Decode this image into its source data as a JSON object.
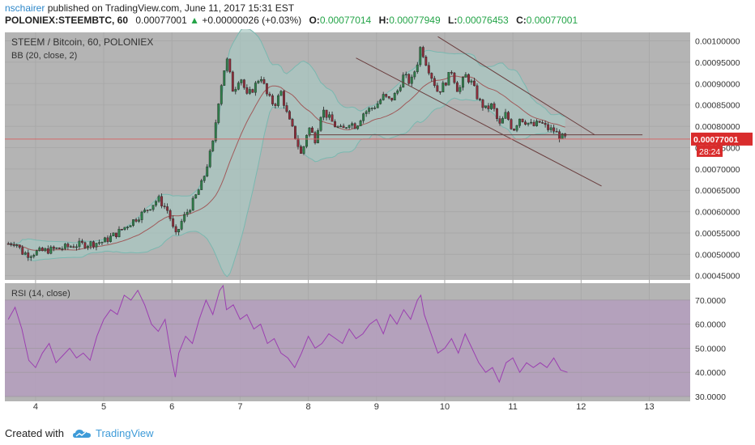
{
  "header": {
    "author": "nschairer",
    "published": " published on TradingView.com, June 11, 2017 15:31 EST",
    "symbol": "POLONIEX:STEEMBTC, 60",
    "last": "0.00077001",
    "arrow": "▲",
    "change": "+0.00000026 (+0.03%)",
    "o_label": "O:",
    "o_value": "0.00077014",
    "h_label": "H:",
    "h_value": "0.00077949",
    "l_label": "L:",
    "l_value": "0.00076453",
    "c_label": "C:",
    "c_value": "0.00077001"
  },
  "footer": {
    "created_with": "Created with",
    "brand": "TradingView"
  },
  "colors": {
    "background": "#b4b4b4",
    "up_candle": "#2f7f4a",
    "down_candle": "#8e2d3a",
    "bb_band": "#7ab8b0",
    "bb_fill": "#a8c8c2",
    "bb_basis": "#a05a5a",
    "rsi_line": "#9b3fb0",
    "rsi_band_fill": "#b49dbd",
    "price_line": "#d36a6a",
    "price_label_bg": "#d92c2c",
    "trend_line": "#6a3f3f"
  },
  "chart_data": [
    {
      "type": "candlestick",
      "title": "STEEM / Bitcoin, 60, POLONIEX",
      "indicator_label": "BB (20, close, 2)",
      "x_ticks": [
        "4",
        "5",
        "6",
        "7",
        "8",
        "9",
        "10",
        "11",
        "12",
        "13"
      ],
      "y_ticks": [
        "0.00100000",
        "0.00095000",
        "0.00090000",
        "0.00085000",
        "0.00080000",
        "0.00075000",
        "0.00070000",
        "0.00065000",
        "0.00060000",
        "0.00055000",
        "0.00050000",
        "0.00045000"
      ],
      "ylim": [
        0.00044,
        0.00102
      ],
      "last_price_label": "0.00077001",
      "countdown_label": "28:24",
      "last_price": 0.00077001,
      "close_path": [
        [
          3.6,
          0.000525
        ],
        [
          3.7,
          0.00053
        ],
        [
          3.8,
          0.000505
        ],
        [
          3.9,
          0.0005
        ],
        [
          4.0,
          0.000505
        ],
        [
          4.2,
          0.00051
        ],
        [
          4.4,
          0.000515
        ],
        [
          4.6,
          0.000522
        ],
        [
          4.8,
          0.000525
        ],
        [
          5.0,
          0.00053
        ],
        [
          5.2,
          0.00055
        ],
        [
          5.4,
          0.000575
        ],
        [
          5.6,
          0.0006
        ],
        [
          5.8,
          0.00063
        ],
        [
          5.95,
          0.0006
        ],
        [
          6.05,
          0.00054
        ],
        [
          6.15,
          0.00058
        ],
        [
          6.3,
          0.00062
        ],
        [
          6.45,
          0.00067
        ],
        [
          6.6,
          0.00076
        ],
        [
          6.7,
          0.00088
        ],
        [
          6.8,
          0.00096
        ],
        [
          6.9,
          0.00088
        ],
        [
          7.0,
          0.00092
        ],
        [
          7.1,
          0.00087
        ],
        [
          7.2,
          0.00089
        ],
        [
          7.3,
          0.00092
        ],
        [
          7.4,
          0.00087
        ],
        [
          7.5,
          0.00085
        ],
        [
          7.6,
          0.00088
        ],
        [
          7.7,
          0.00082
        ],
        [
          7.8,
          0.00078
        ],
        [
          7.9,
          0.00073
        ],
        [
          8.0,
          0.0008
        ],
        [
          8.1,
          0.00077
        ],
        [
          8.2,
          0.00084
        ],
        [
          8.3,
          0.00082
        ],
        [
          8.4,
          0.0008
        ],
        [
          8.5,
          0.00079
        ],
        [
          8.6,
          0.00081
        ],
        [
          8.7,
          0.0008
        ],
        [
          8.8,
          0.00083
        ],
        [
          8.9,
          0.00084
        ],
        [
          9.0,
          0.00085
        ],
        [
          9.1,
          0.00087
        ],
        [
          9.2,
          0.00086
        ],
        [
          9.3,
          0.00088
        ],
        [
          9.4,
          0.00092
        ],
        [
          9.5,
          0.0009
        ],
        [
          9.6,
          0.00095
        ],
        [
          9.65,
          0.00099
        ],
        [
          9.7,
          0.00096
        ],
        [
          9.8,
          0.00092
        ],
        [
          9.9,
          0.00088
        ],
        [
          10.0,
          0.0009
        ],
        [
          10.1,
          0.00093
        ],
        [
          10.2,
          0.00088
        ],
        [
          10.3,
          0.00092
        ],
        [
          10.4,
          0.0009
        ],
        [
          10.5,
          0.00086
        ],
        [
          10.6,
          0.00084
        ],
        [
          10.7,
          0.00085
        ],
        [
          10.8,
          0.0008
        ],
        [
          10.9,
          0.00083
        ],
        [
          11.0,
          0.00079
        ],
        [
          11.1,
          0.00082
        ],
        [
          11.2,
          0.00081
        ],
        [
          11.3,
          0.0008
        ],
        [
          11.4,
          0.00081
        ],
        [
          11.5,
          0.000795
        ],
        [
          11.6,
          0.00079
        ],
        [
          11.7,
          0.000775
        ],
        [
          11.8,
          0.00077
        ]
      ],
      "trend_lines": [
        [
          [
            9.9,
            0.00101
          ],
          [
            12.2,
            0.00078
          ]
        ],
        [
          [
            8.7,
            0.00096
          ],
          [
            12.3,
            0.00066
          ]
        ],
        [
          [
            8.0,
            0.00078
          ],
          [
            12.9,
            0.00078
          ]
        ]
      ]
    },
    {
      "type": "line",
      "title": "RSI (14, close)",
      "y_ticks": [
        "70.0000",
        "60.0000",
        "50.0000",
        "40.0000",
        "30.0000"
      ],
      "ylim": [
        28,
        77
      ],
      "band": [
        30,
        70
      ],
      "x": [
        3.6,
        3.7,
        3.8,
        3.9,
        4.0,
        4.1,
        4.2,
        4.3,
        4.4,
        4.5,
        4.6,
        4.7,
        4.8,
        4.9,
        5.0,
        5.1,
        5.2,
        5.3,
        5.4,
        5.5,
        5.6,
        5.7,
        5.8,
        5.9,
        6.0,
        6.05,
        6.1,
        6.2,
        6.3,
        6.4,
        6.5,
        6.6,
        6.7,
        6.75,
        6.8,
        6.9,
        7.0,
        7.1,
        7.2,
        7.3,
        7.4,
        7.5,
        7.6,
        7.7,
        7.8,
        7.9,
        8.0,
        8.1,
        8.2,
        8.3,
        8.4,
        8.5,
        8.6,
        8.7,
        8.8,
        8.9,
        9.0,
        9.1,
        9.2,
        9.3,
        9.4,
        9.5,
        9.6,
        9.65,
        9.7,
        9.8,
        9.9,
        10.0,
        10.1,
        10.2,
        10.3,
        10.4,
        10.5,
        10.6,
        10.7,
        10.8,
        10.9,
        11.0,
        11.1,
        11.2,
        11.3,
        11.4,
        11.5,
        11.6,
        11.7,
        11.8
      ],
      "values": [
        62,
        67,
        58,
        45,
        42,
        48,
        52,
        44,
        47,
        50,
        46,
        48,
        45,
        55,
        62,
        66,
        64,
        72,
        70,
        74,
        68,
        60,
        57,
        62,
        45,
        38,
        48,
        55,
        52,
        62,
        70,
        64,
        74,
        76,
        66,
        68,
        62,
        64,
        58,
        60,
        52,
        54,
        48,
        46,
        42,
        48,
        55,
        50,
        52,
        56,
        54,
        52,
        58,
        54,
        56,
        60,
        62,
        56,
        64,
        60,
        66,
        62,
        70,
        72,
        64,
        56,
        48,
        50,
        54,
        48,
        56,
        50,
        44,
        40,
        42,
        36,
        44,
        46,
        40,
        44,
        42,
        44,
        42,
        46,
        41,
        40
      ]
    }
  ]
}
